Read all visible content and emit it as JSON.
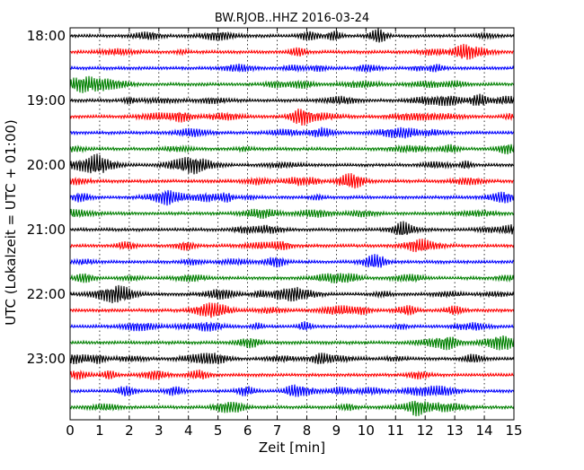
{
  "chart_data": {
    "type": "line",
    "title": "BW.RJOB..HHZ 2016-03-24",
    "xlabel": "Zeit  [min]",
    "ylabel": "UTC (Lokalzeit = UTC + 01:00)",
    "xlim": [
      0,
      15
    ],
    "x_ticks": [
      "0",
      "1",
      "2",
      "3",
      "4",
      "5",
      "6",
      "7",
      "8",
      "9",
      "10",
      "11",
      "12",
      "13",
      "14",
      "15"
    ],
    "y_ticks": [
      {
        "label": "18:00",
        "trace": 0
      },
      {
        "label": "19:00",
        "trace": 4
      },
      {
        "label": "20:00",
        "trace": 8
      },
      {
        "label": "21:00",
        "trace": 12
      },
      {
        "label": "22:00",
        "trace": 16
      },
      {
        "label": "23:00",
        "trace": 20
      }
    ],
    "traces_per_hour": 4,
    "trace_count": 24,
    "colors": [
      "#000000",
      "#ff0000",
      "#0000ff",
      "#008000"
    ],
    "grid": "vertical dotted",
    "legend": "none"
  }
}
